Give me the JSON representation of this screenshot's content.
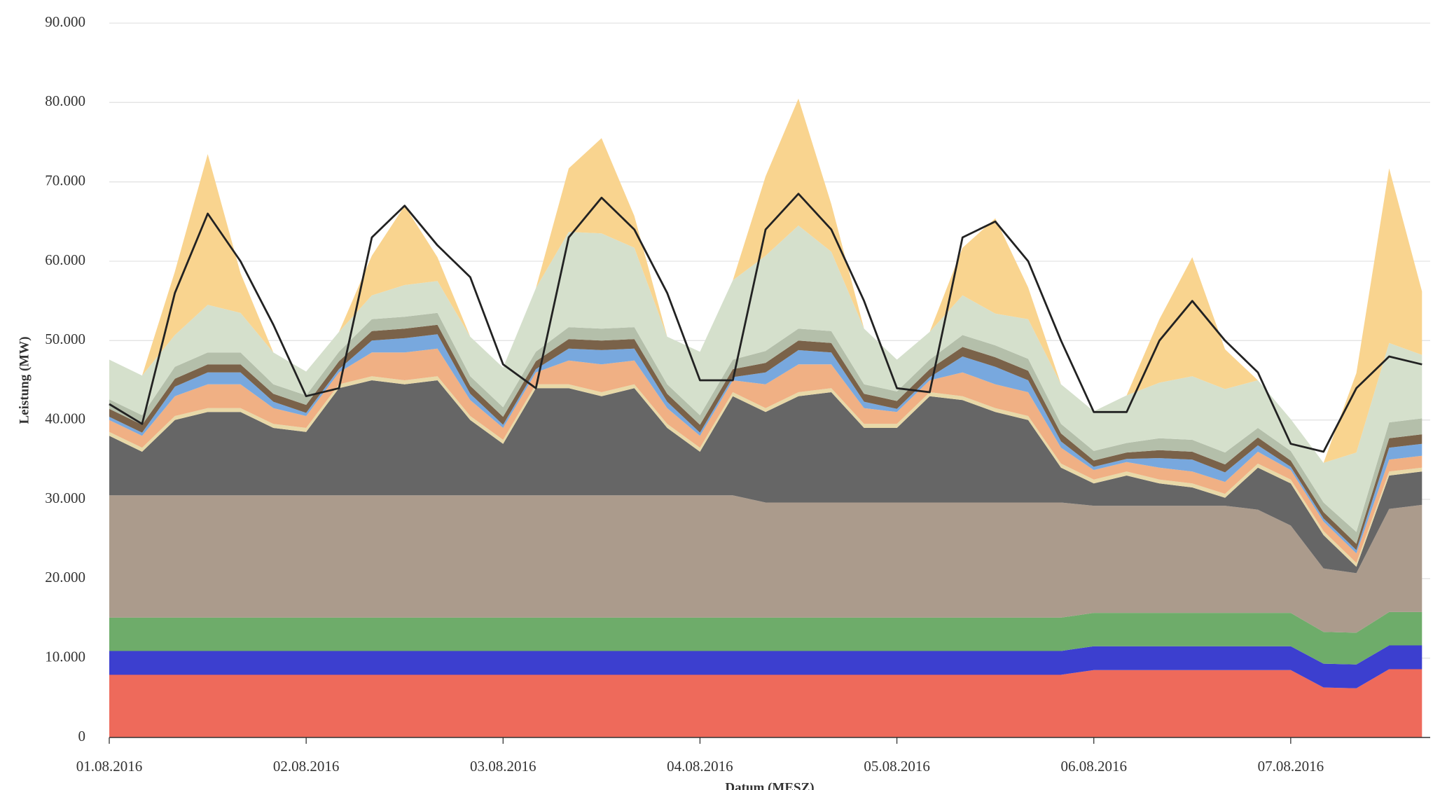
{
  "chart_data": {
    "type": "area",
    "stacked": true,
    "y_axis_label": "Leistung (MW)",
    "x_axis_label": "Datum (MESZ)",
    "grid": true,
    "x": [
      0,
      4,
      8,
      12,
      16,
      20,
      24,
      28,
      32,
      36,
      40,
      44,
      48,
      52,
      56,
      60,
      64,
      68,
      72,
      76,
      80,
      84,
      88,
      92,
      96,
      100,
      104,
      108,
      112,
      116,
      120,
      124,
      128,
      132,
      136,
      140,
      144,
      148,
      152,
      156,
      160
    ],
    "xlim": [
      0,
      161
    ],
    "xticks": [
      {
        "value": 0,
        "label": "01.08.2016"
      },
      {
        "value": 24,
        "label": "02.08.2016"
      },
      {
        "value": 48,
        "label": "03.08.2016"
      },
      {
        "value": 72,
        "label": "04.08.2016"
      },
      {
        "value": 96,
        "label": "05.08.2016"
      },
      {
        "value": 120,
        "label": "06.08.2016"
      },
      {
        "value": 144,
        "label": "07.08.2016"
      }
    ],
    "ylim": [
      0,
      90000
    ],
    "yticks": [
      0,
      {
        "value": 10000,
        "label": "10.000"
      },
      {
        "value": 20000,
        "label": "20.000"
      },
      {
        "value": 30000,
        "label": "30.000"
      },
      {
        "value": 40000,
        "label": "40.000"
      },
      {
        "value": 50000,
        "label": "50.000"
      },
      {
        "value": 60000,
        "label": "60.000"
      },
      {
        "value": 70000,
        "label": "70.000"
      },
      {
        "value": 80000,
        "label": "80.000"
      },
      {
        "value": 90000,
        "label": "90.000"
      }
    ],
    "series": [
      {
        "color": "#ee6a5b",
        "values": [
          7900,
          7900,
          7900,
          7900,
          7900,
          7900,
          7900,
          7900,
          7900,
          7900,
          7900,
          7900,
          7900,
          7900,
          7900,
          7900,
          7900,
          7900,
          7900,
          7900,
          7900,
          7900,
          7900,
          7900,
          7900,
          7900,
          7900,
          7900,
          7900,
          7900,
          8500,
          8500,
          8500,
          8500,
          8500,
          8500,
          8500,
          6300,
          6200,
          8600,
          8600
        ]
      },
      {
        "color": "#3c3fcf",
        "values": [
          3000,
          3000,
          3000,
          3000,
          3000,
          3000,
          3000,
          3000,
          3000,
          3000,
          3000,
          3000,
          3000,
          3000,
          3000,
          3000,
          3000,
          3000,
          3000,
          3000,
          3000,
          3000,
          3000,
          3000,
          3000,
          3000,
          3000,
          3000,
          3000,
          3000,
          3000,
          3000,
          3000,
          3000,
          3000,
          3000,
          3000,
          3000,
          3000,
          3000,
          3000
        ]
      },
      {
        "color": "#6eac6a",
        "values": [
          4200,
          4200,
          4200,
          4200,
          4200,
          4200,
          4200,
          4200,
          4200,
          4200,
          4200,
          4200,
          4200,
          4200,
          4200,
          4200,
          4200,
          4200,
          4200,
          4200,
          4200,
          4200,
          4200,
          4200,
          4200,
          4200,
          4200,
          4200,
          4200,
          4200,
          4200,
          4200,
          4200,
          4200,
          4200,
          4200,
          4200,
          4000,
          4000,
          4200,
          4200
        ]
      },
      {
        "color": "#ab9b8c",
        "values": [
          15400,
          15400,
          15400,
          15400,
          15400,
          15400,
          15400,
          15400,
          15400,
          15400,
          15400,
          15400,
          15400,
          15400,
          15400,
          15400,
          15400,
          15400,
          15400,
          15400,
          14500,
          14500,
          14500,
          14500,
          14500,
          14500,
          14500,
          14500,
          14500,
          14500,
          13500,
          13500,
          13500,
          13500,
          13500,
          13000,
          11000,
          8000,
          7500,
          13000,
          13500
        ]
      },
      {
        "color": "#666666",
        "values": [
          7500,
          5500,
          9500,
          10500,
          10500,
          8500,
          8000,
          13500,
          14500,
          14000,
          14500,
          9500,
          6500,
          13500,
          13500,
          12500,
          13500,
          8500,
          5500,
          12500,
          11400,
          13400,
          13900,
          9400,
          9400,
          13400,
          12900,
          11400,
          10400,
          4400,
          2800,
          3800,
          2800,
          2300,
          1000,
          5300,
          5300,
          4200,
          800,
          4200,
          4200
        ]
      },
      {
        "color": "#e8d9a8",
        "values": [
          500,
          500,
          500,
          500,
          500,
          500,
          500,
          500,
          500,
          500,
          500,
          500,
          500,
          500,
          500,
          500,
          500,
          500,
          500,
          500,
          500,
          500,
          500,
          500,
          500,
          500,
          500,
          500,
          500,
          500,
          500,
          500,
          500,
          500,
          500,
          500,
          500,
          500,
          500,
          500,
          500
        ]
      },
      {
        "color": "#f0b084",
        "values": [
          1500,
          1500,
          2500,
          3000,
          3000,
          2000,
          1500,
          1500,
          3000,
          3500,
          3500,
          2000,
          1500,
          1500,
          3000,
          3500,
          3000,
          2000,
          1500,
          1500,
          3000,
          3500,
          3000,
          2000,
          1500,
          1500,
          3000,
          3000,
          3000,
          2000,
          1200,
          1200,
          1500,
          1500,
          1500,
          1500,
          1200,
          1200,
          1200,
          1500,
          1500
        ]
      },
      {
        "color": "#78a8de",
        "values": [
          400,
          400,
          1200,
          1500,
          1500,
          800,
          400,
          400,
          1500,
          1800,
          1800,
          800,
          400,
          400,
          1500,
          1800,
          1500,
          800,
          400,
          400,
          1500,
          1800,
          1500,
          800,
          400,
          400,
          2000,
          2200,
          1500,
          800,
          400,
          400,
          1200,
          1500,
          1200,
          800,
          400,
          400,
          400,
          1500,
          1500
        ]
      },
      {
        "color": "#7a6249",
        "values": [
          1000,
          1000,
          1000,
          1000,
          1000,
          1000,
          1000,
          1000,
          1200,
          1200,
          1200,
          1000,
          1000,
          1000,
          1200,
          1200,
          1200,
          1000,
          1000,
          1000,
          1200,
          1200,
          1200,
          1000,
          1000,
          1000,
          1200,
          1200,
          1200,
          1000,
          800,
          800,
          1000,
          1000,
          1000,
          1000,
          800,
          800,
          800,
          1200,
          1200
        ]
      },
      {
        "color": "#b4bfaa",
        "values": [
          1200,
          1200,
          1500,
          1500,
          1500,
          1200,
          1200,
          1200,
          1500,
          1500,
          1500,
          1200,
          1200,
          1200,
          1500,
          1500,
          1500,
          1200,
          1200,
          1200,
          1500,
          1500,
          1500,
          1200,
          1200,
          1200,
          1500,
          1500,
          1500,
          1200,
          1200,
          1200,
          1500,
          1500,
          1500,
          1200,
          1200,
          1200,
          1500,
          2000,
          2000
        ]
      },
      {
        "color": "#d5e0cc",
        "values": [
          5000,
          5000,
          4000,
          6000,
          5000,
          4000,
          3000,
          2500,
          3000,
          4000,
          4000,
          5000,
          5000,
          8000,
          12000,
          12000,
          10000,
          6000,
          8000,
          10000,
          12000,
          13000,
          10000,
          7000,
          4000,
          3500,
          5000,
          4000,
          5000,
          5000,
          5000,
          6000,
          7000,
          8000,
          8000,
          6000,
          4000,
          5000,
          10000,
          10000,
          8000
        ]
      },
      {
        "color": "#f9d48f",
        "values": [
          0,
          0,
          8000,
          19000,
          5000,
          0,
          0,
          0,
          5000,
          10000,
          3000,
          0,
          0,
          0,
          8000,
          12000,
          4000,
          0,
          0,
          0,
          10000,
          16000,
          6000,
          0,
          0,
          0,
          6000,
          12000,
          4000,
          0,
          0,
          0,
          8000,
          15000,
          5000,
          0,
          0,
          0,
          10000,
          22000,
          8000
        ]
      },
      {
        "type": "line",
        "color": "#222222",
        "values": [
          42000,
          39500,
          56000,
          66000,
          60000,
          52000,
          43000,
          44000,
          63000,
          67000,
          62000,
          58000,
          47000,
          44000,
          63000,
          68000,
          64000,
          56000,
          45000,
          45000,
          64000,
          68500,
          64000,
          55000,
          44000,
          43500,
          63000,
          65000,
          60000,
          50000,
          41000,
          41000,
          50000,
          55000,
          50000,
          46000,
          37000,
          36000,
          44000,
          48000,
          47000
        ]
      }
    ]
  }
}
